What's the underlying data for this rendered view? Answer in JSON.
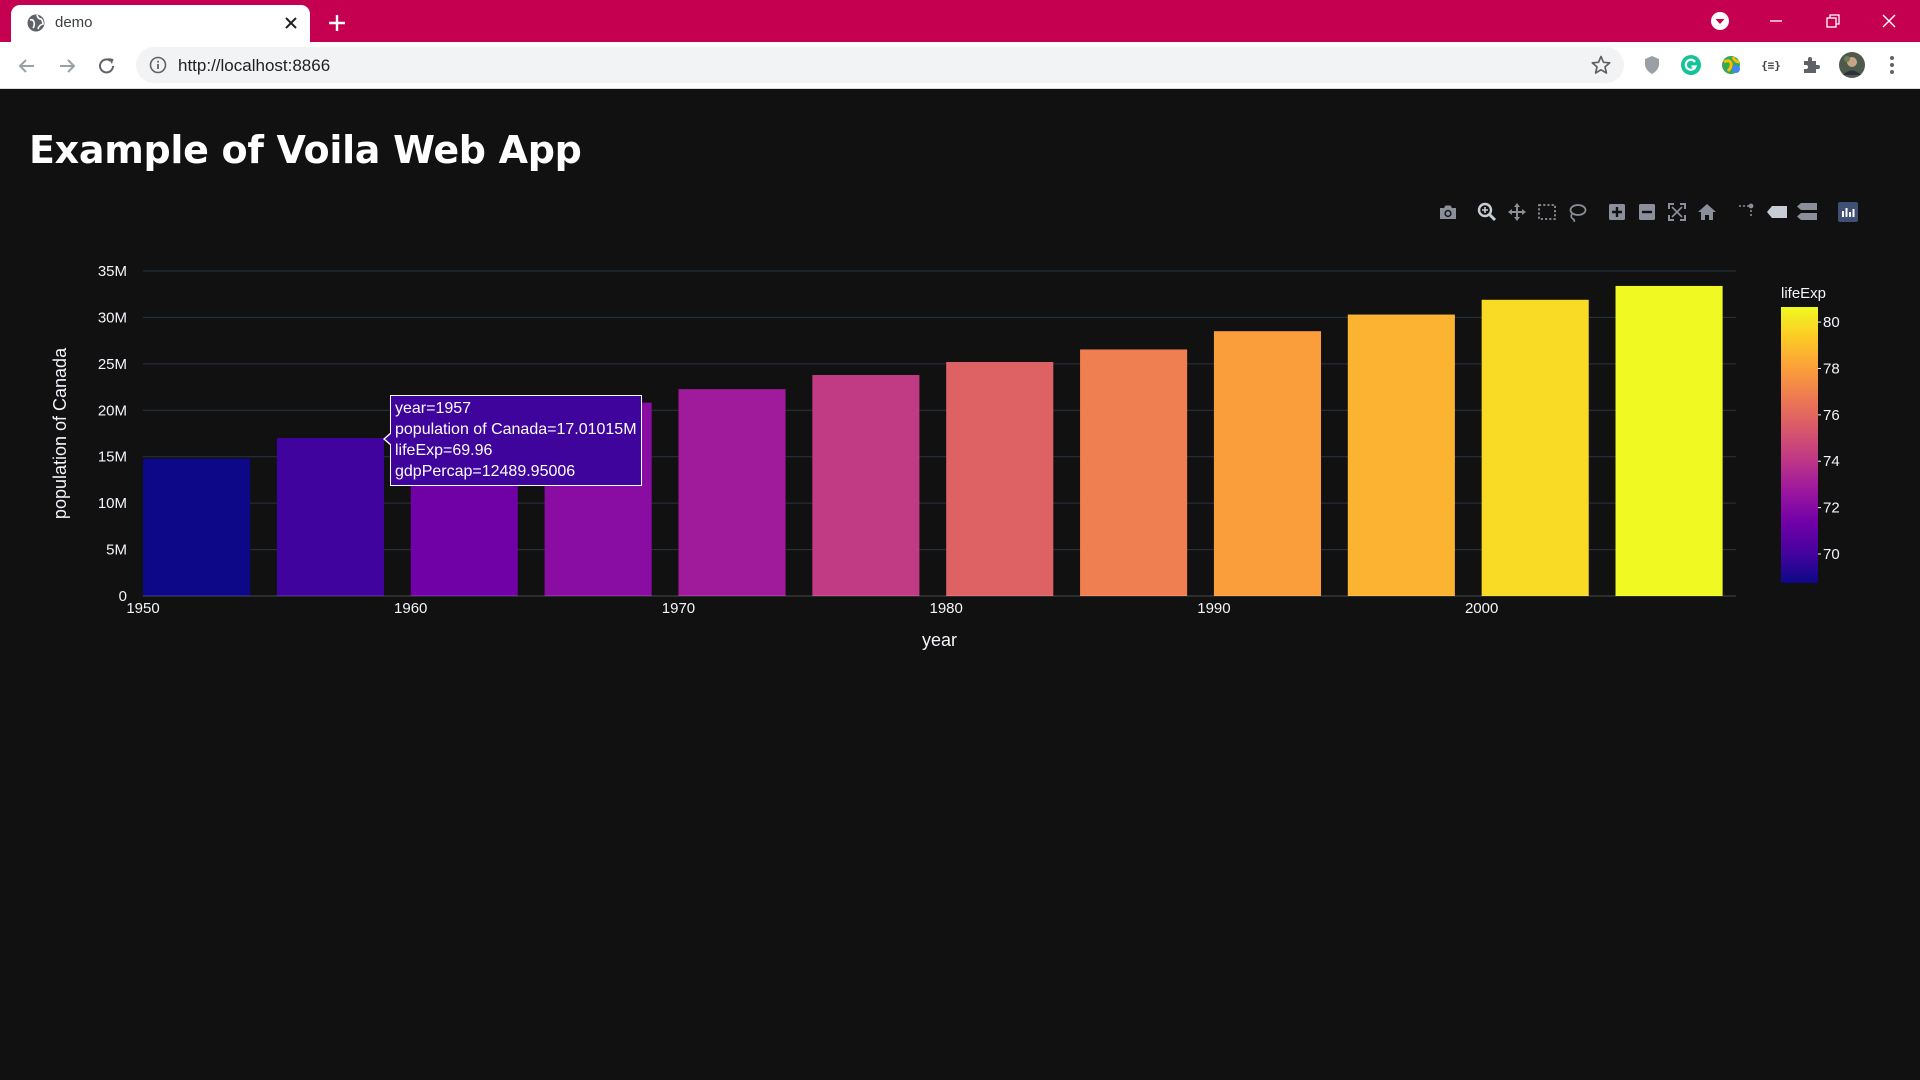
{
  "browser": {
    "tab_title": "demo",
    "url": "http://localhost:8866",
    "accent_color": "#c50050"
  },
  "page": {
    "title": "Example of Voila Web App"
  },
  "modebar": {
    "buttons": [
      "camera-icon",
      "zoom-icon",
      "pan-icon",
      "box-select-icon",
      "lasso-select-icon",
      "zoom-in-icon",
      "zoom-out-icon",
      "autoscale-icon",
      "reset-axes-icon",
      "spike-lines-icon",
      "hover-closest-icon",
      "hover-compare-icon",
      "plotly-logo-icon"
    ]
  },
  "chart_data": {
    "type": "bar",
    "x": [
      1952,
      1957,
      1962,
      1967,
      1972,
      1977,
      1982,
      1987,
      1992,
      1997,
      2002,
      2007
    ],
    "values": [
      14.79,
      17.01,
      18.99,
      20.82,
      22.28,
      23.8,
      25.2,
      26.55,
      28.52,
      30.31,
      31.9,
      33.39
    ],
    "lifeExp": [
      68.75,
      69.96,
      71.3,
      72.13,
      72.88,
      74.21,
      75.76,
      76.86,
      77.95,
      78.61,
      79.77,
      80.65
    ],
    "xlabel": "year",
    "ylabel": "population of Canada",
    "x_ticks": [
      "1950",
      "1960",
      "1970",
      "1980",
      "1990",
      "2000"
    ],
    "x_tick_values": [
      1950,
      1960,
      1970,
      1980,
      1990,
      2000
    ],
    "y_ticks": [
      "0",
      "5M",
      "10M",
      "15M",
      "20M",
      "25M",
      "30M",
      "35M"
    ],
    "y_tick_values": [
      0,
      5,
      10,
      15,
      20,
      25,
      30,
      35
    ],
    "xlim": [
      1950,
      2009.5
    ],
    "ylim": [
      0,
      35
    ],
    "grid": true,
    "legend": {
      "title": "lifeExp",
      "placement": "right",
      "ticks": [
        "70",
        "72",
        "74",
        "76",
        "78",
        "80"
      ],
      "tick_values": [
        70,
        72,
        74,
        76,
        78,
        80
      ],
      "range": [
        68.75,
        80.65
      ],
      "colorscale": [
        "#0d0887",
        "#46039f",
        "#7201a8",
        "#9c179e",
        "#bd3786",
        "#d8576b",
        "#ed7953",
        "#fb9f3a",
        "#fdca26",
        "#f0f921"
      ]
    },
    "hover": {
      "lines": [
        "year=1957",
        "population of Canada=17.01015M",
        "lifeExp=69.96",
        "gdpPercap=12489.95006"
      ]
    }
  }
}
